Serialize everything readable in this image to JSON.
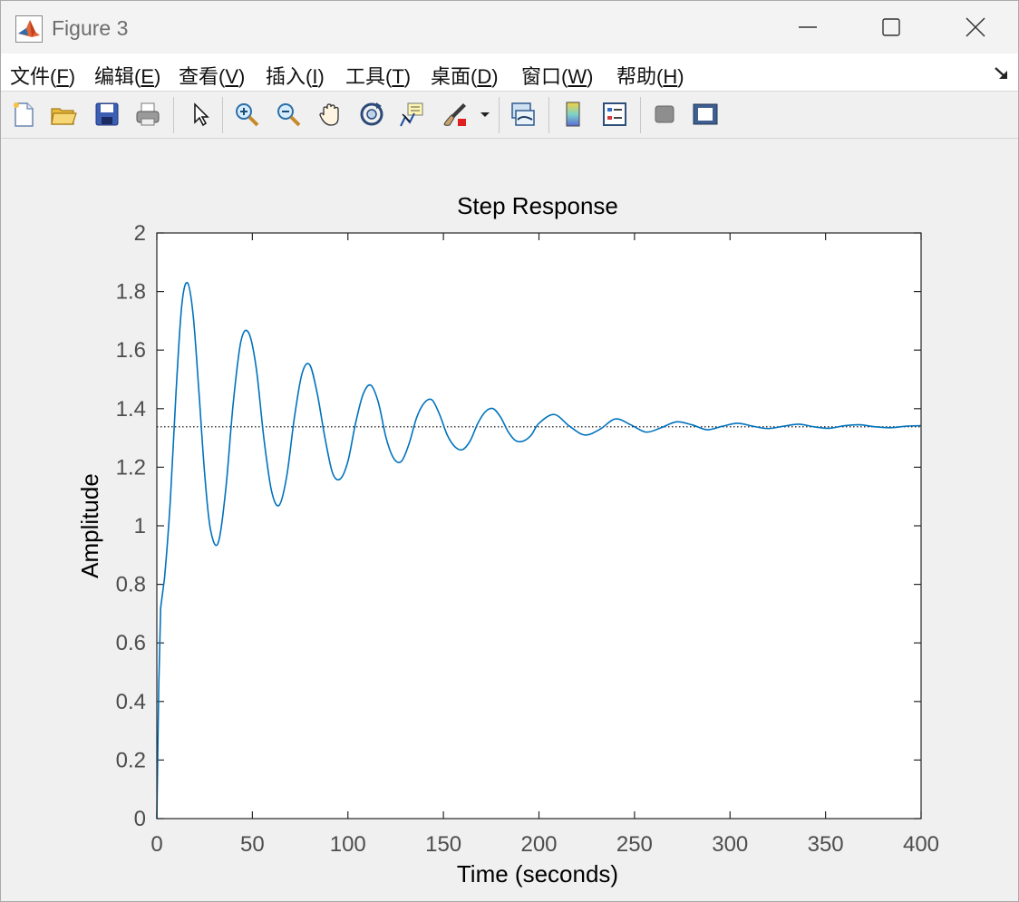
{
  "window": {
    "title": "Figure 3",
    "app_icon": "matlab-logo-icon",
    "controls": [
      "minimize-icon",
      "maximize-icon",
      "close-icon"
    ]
  },
  "menu": {
    "items": [
      {
        "label": "文件(",
        "accel": "F",
        "suffix": ")"
      },
      {
        "label": "编辑(",
        "accel": "E",
        "suffix": ")"
      },
      {
        "label": "查看(",
        "accel": "V",
        "suffix": ")"
      },
      {
        "label": "插入(",
        "accel": "I",
        "suffix": ")"
      },
      {
        "label": "工具(",
        "accel": "T",
        "suffix": ")"
      },
      {
        "label": "桌面(",
        "accel": "D",
        "suffix": ")"
      },
      {
        "label": "窗口(",
        "accel": "W",
        "suffix": ")"
      },
      {
        "label": "帮助(",
        "accel": "H",
        "suffix": ")"
      }
    ],
    "undock_icon": "undock-arrow-icon"
  },
  "toolbar": {
    "buttons": [
      "new-figure-icon",
      "open-file-icon",
      "save-icon",
      "print-icon",
      "pointer-icon",
      "zoom-in-icon",
      "zoom-out-icon",
      "pan-hand-icon",
      "rotate-3d-icon",
      "data-cursor-icon",
      "brush-icon",
      "brush-dropdown-icon",
      "link-plot-icon",
      "colorbar-icon",
      "legend-icon",
      "hide-plot-tools-icon",
      "show-plot-tools-icon"
    ]
  },
  "colors": {
    "line": "#0072bd",
    "steady_state_line": "#000000",
    "axes_background": "#ffffff",
    "figure_background": "#f0f0f0"
  },
  "chart_data": {
    "type": "line",
    "title": "Step Response",
    "xlabel": "Time (seconds)",
    "ylabel": "Amplitude",
    "xlim": [
      0,
      400
    ],
    "ylim": [
      0,
      2
    ],
    "xticks": [
      "0",
      "50",
      "100",
      "150",
      "200",
      "250",
      "300",
      "350",
      "400"
    ],
    "yticks": [
      "0",
      "0.2",
      "0.4",
      "0.6",
      "0.8",
      "1",
      "1.2",
      "1.4",
      "1.6",
      "1.8",
      "2"
    ],
    "grid": false,
    "steady_state": 1.338,
    "series": [
      {
        "x": [
          0,
          1,
          2,
          4,
          7,
          10,
          13,
          16,
          19,
          22,
          25,
          28,
          32,
          36,
          40,
          44,
          48,
          52,
          56,
          60,
          64,
          68,
          72,
          76,
          80,
          84,
          88,
          92,
          96,
          100,
          104,
          108,
          112,
          116,
          120,
          124,
          128,
          132,
          136,
          140,
          144,
          148,
          152,
          156,
          160,
          164,
          168,
          172,
          176,
          180,
          184,
          188,
          192,
          196,
          200,
          208,
          216,
          224,
          232,
          240,
          248,
          256,
          264,
          272,
          280,
          288,
          296,
          304,
          312,
          320,
          328,
          336,
          344,
          352,
          360,
          368,
          376,
          384,
          392,
          400
        ],
        "y": [
          0,
          0.45,
          0.72,
          0.82,
          1.08,
          1.45,
          1.75,
          1.83,
          1.72,
          1.46,
          1.18,
          0.99,
          0.94,
          1.12,
          1.42,
          1.63,
          1.66,
          1.54,
          1.3,
          1.12,
          1.07,
          1.17,
          1.37,
          1.52,
          1.55,
          1.45,
          1.3,
          1.18,
          1.16,
          1.22,
          1.35,
          1.45,
          1.48,
          1.42,
          1.3,
          1.23,
          1.22,
          1.28,
          1.37,
          1.42,
          1.43,
          1.38,
          1.31,
          1.27,
          1.26,
          1.29,
          1.35,
          1.39,
          1.4,
          1.37,
          1.32,
          1.29,
          1.29,
          1.31,
          1.35,
          1.38,
          1.34,
          1.31,
          1.33,
          1.365,
          1.345,
          1.32,
          1.335,
          1.355,
          1.345,
          1.328,
          1.34,
          1.35,
          1.34,
          1.332,
          1.34,
          1.347,
          1.338,
          1.333,
          1.342,
          1.345,
          1.338,
          1.335,
          1.34,
          1.342
        ]
      }
    ]
  }
}
